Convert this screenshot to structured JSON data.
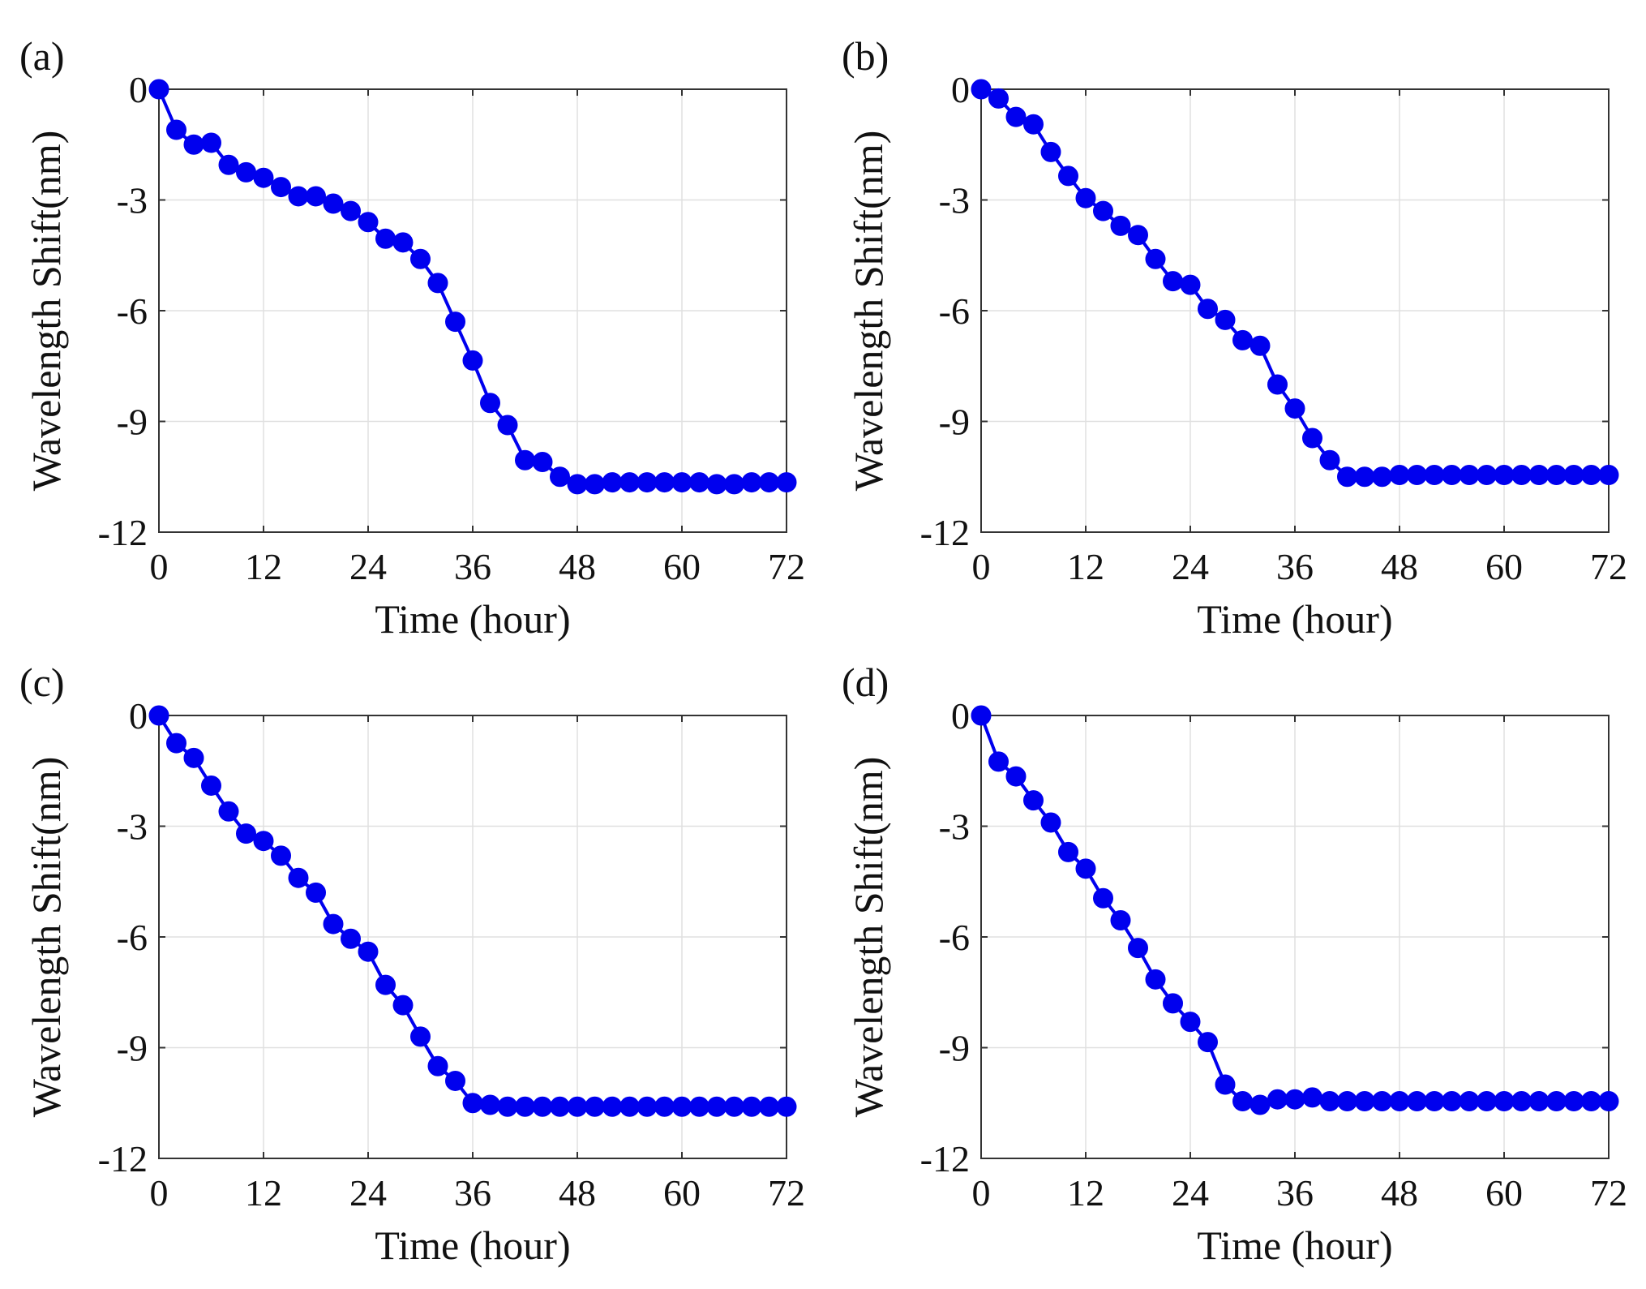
{
  "figure": {
    "background": "#ffffff",
    "line_color": "#0000ee",
    "grid_color": "#e0e0e0",
    "axes_color": "#333333"
  },
  "chart_data": [
    {
      "label": "(a)",
      "type": "line",
      "markers": "circle",
      "xlabel": "Time (hour)",
      "ylabel": "Wavelength Shift(nm)",
      "xlim": [
        0,
        72
      ],
      "ylim": [
        -12,
        0
      ],
      "xticks": [
        "0",
        "12",
        "24",
        "36",
        "48",
        "60",
        "72"
      ],
      "yticks": [
        "0",
        "-3",
        "-6",
        "-9",
        "-12"
      ],
      "grid": true,
      "x": [
        0,
        2,
        4,
        6,
        8,
        10,
        12,
        14,
        16,
        18,
        20,
        22,
        24,
        26,
        28,
        30,
        32,
        34,
        36,
        38,
        40,
        42,
        44,
        46,
        48,
        50,
        52,
        54,
        56,
        58,
        60,
        62,
        64,
        66,
        68,
        70,
        72
      ],
      "y": [
        0,
        -1.1,
        -1.5,
        -1.45,
        -2.05,
        -2.25,
        -2.4,
        -2.65,
        -2.9,
        -2.9,
        -3.1,
        -3.3,
        -3.6,
        -4.05,
        -4.15,
        -4.6,
        -5.25,
        -6.3,
        -7.35,
        -8.5,
        -9.1,
        -10.05,
        -10.1,
        -10.5,
        -10.7,
        -10.7,
        -10.65,
        -10.65,
        -10.65,
        -10.65,
        -10.65,
        -10.65,
        -10.7,
        -10.7,
        -10.65,
        -10.65,
        -10.65
      ]
    },
    {
      "label": "(b)",
      "type": "line",
      "markers": "circle",
      "xlabel": "Time (hour)",
      "ylabel": "Wavelength Shift(nm)",
      "xlim": [
        0,
        72
      ],
      "ylim": [
        -12,
        0
      ],
      "xticks": [
        "0",
        "12",
        "24",
        "36",
        "48",
        "60",
        "72"
      ],
      "yticks": [
        "0",
        "-3",
        "-6",
        "-9",
        "-12"
      ],
      "grid": true,
      "x": [
        0,
        2,
        4,
        6,
        8,
        10,
        12,
        14,
        16,
        18,
        20,
        22,
        24,
        26,
        28,
        30,
        32,
        34,
        36,
        38,
        40,
        42,
        44,
        46,
        48,
        50,
        52,
        54,
        56,
        58,
        60,
        62,
        64,
        66,
        68,
        70,
        72
      ],
      "y": [
        0,
        -0.25,
        -0.75,
        -0.95,
        -1.7,
        -2.35,
        -2.95,
        -3.3,
        -3.7,
        -3.95,
        -4.6,
        -5.2,
        -5.3,
        -5.95,
        -6.25,
        -6.8,
        -6.95,
        -8.0,
        -8.65,
        -9.45,
        -10.05,
        -10.5,
        -10.5,
        -10.5,
        -10.45,
        -10.45,
        -10.45,
        -10.45,
        -10.45,
        -10.45,
        -10.45,
        -10.45,
        -10.45,
        -10.45,
        -10.45,
        -10.45,
        -10.45
      ]
    },
    {
      "label": "(c)",
      "type": "line",
      "markers": "circle",
      "xlabel": "Time (hour)",
      "ylabel": "Wavelength Shift(nm)",
      "xlim": [
        0,
        72
      ],
      "ylim": [
        -12,
        0
      ],
      "xticks": [
        "0",
        "12",
        "24",
        "36",
        "48",
        "60",
        "72"
      ],
      "yticks": [
        "0",
        "-3",
        "-6",
        "-9",
        "-12"
      ],
      "grid": true,
      "x": [
        0,
        2,
        4,
        6,
        8,
        10,
        12,
        14,
        16,
        18,
        20,
        22,
        24,
        26,
        28,
        30,
        32,
        34,
        36,
        38,
        40,
        42,
        44,
        46,
        48,
        50,
        52,
        54,
        56,
        58,
        60,
        62,
        64,
        66,
        68,
        70,
        72
      ],
      "y": [
        0,
        -0.75,
        -1.15,
        -1.9,
        -2.6,
        -3.2,
        -3.4,
        -3.8,
        -4.4,
        -4.8,
        -5.65,
        -6.05,
        -6.4,
        -7.3,
        -7.85,
        -8.7,
        -9.5,
        -9.9,
        -10.5,
        -10.55,
        -10.6,
        -10.6,
        -10.6,
        -10.6,
        -10.6,
        -10.6,
        -10.6,
        -10.6,
        -10.6,
        -10.6,
        -10.6,
        -10.6,
        -10.6,
        -10.6,
        -10.6,
        -10.6,
        -10.6
      ]
    },
    {
      "label": "(d)",
      "type": "line",
      "markers": "circle",
      "xlabel": "Time (hour)",
      "ylabel": "Wavelength Shift(nm)",
      "xlim": [
        0,
        72
      ],
      "ylim": [
        -12,
        0
      ],
      "xticks": [
        "0",
        "12",
        "24",
        "36",
        "48",
        "60",
        "72"
      ],
      "yticks": [
        "0",
        "-3",
        "-6",
        "-9",
        "-12"
      ],
      "grid": true,
      "x": [
        0,
        2,
        4,
        6,
        8,
        10,
        12,
        14,
        16,
        18,
        20,
        22,
        24,
        26,
        28,
        30,
        32,
        34,
        36,
        38,
        40,
        42,
        44,
        46,
        48,
        50,
        52,
        54,
        56,
        58,
        60,
        62,
        64,
        66,
        68,
        70,
        72
      ],
      "y": [
        0,
        -1.25,
        -1.65,
        -2.3,
        -2.9,
        -3.7,
        -4.15,
        -4.95,
        -5.55,
        -6.3,
        -7.15,
        -7.8,
        -8.3,
        -8.85,
        -10.0,
        -10.45,
        -10.55,
        -10.4,
        -10.4,
        -10.35,
        -10.45,
        -10.45,
        -10.45,
        -10.45,
        -10.45,
        -10.45,
        -10.45,
        -10.45,
        -10.45,
        -10.45,
        -10.45,
        -10.45,
        -10.45,
        -10.45,
        -10.45,
        -10.45,
        -10.45
      ]
    }
  ]
}
